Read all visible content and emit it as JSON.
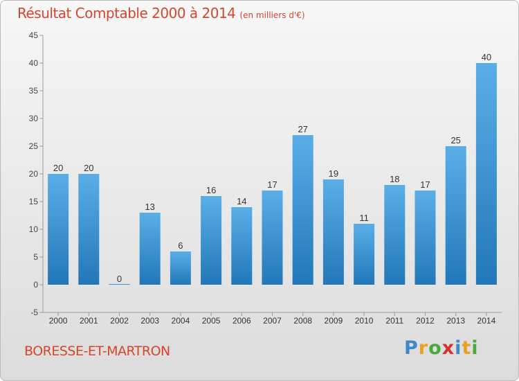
{
  "title": "Résultat Comptable 2000 à 2014",
  "unit": "(en milliers d'€)",
  "commune": "BORESSE-ET-MARTRON",
  "logo": [
    "P",
    "r",
    "o",
    "x",
    "i",
    "t",
    "i"
  ],
  "colors": {
    "title": "#d6452c",
    "bar_top": "#5aaee8",
    "bar_bottom": "#2277b8"
  },
  "chart_data": {
    "type": "bar",
    "categories": [
      "2000",
      "2001",
      "2002",
      "2003",
      "2004",
      "2005",
      "2006",
      "2007",
      "2008",
      "2009",
      "2010",
      "2011",
      "2012",
      "2013",
      "2014"
    ],
    "values": [
      20,
      20,
      0,
      13,
      6,
      16,
      14,
      17,
      27,
      19,
      11,
      18,
      17,
      25,
      40
    ],
    "ylim": [
      -5,
      45
    ],
    "yticks": [
      -5,
      0,
      5,
      10,
      15,
      20,
      25,
      30,
      35,
      40,
      45
    ],
    "grid": false,
    "title": "Résultat Comptable 2000 à 2014",
    "xlabel": "",
    "ylabel": ""
  }
}
